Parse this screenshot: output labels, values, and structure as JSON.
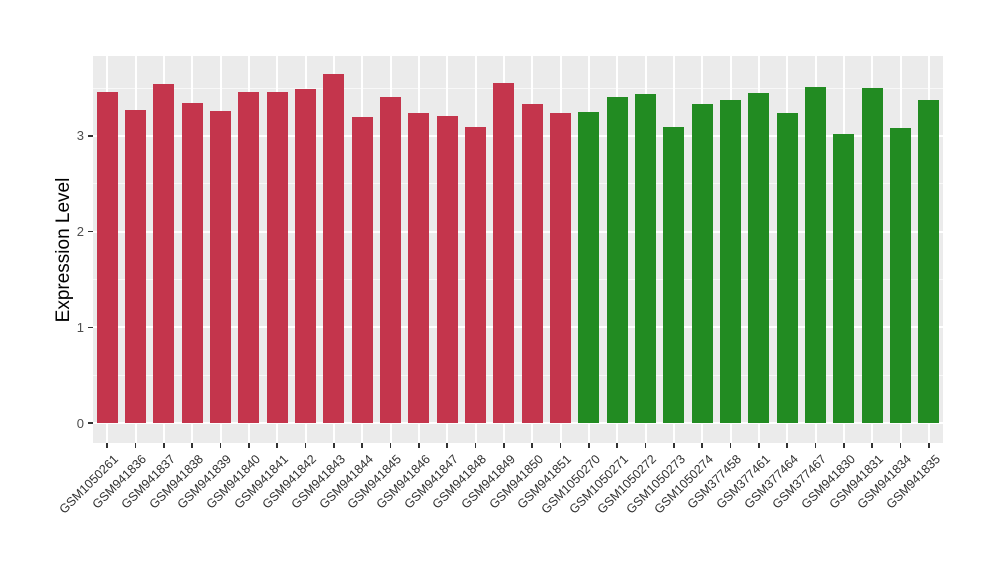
{
  "figure": {
    "background": "#FFFFFF",
    "panel_background": "#EBEBEB",
    "gridline_color": "#FFFFFF"
  },
  "chart_data": {
    "type": "bar",
    "title": "",
    "xlabel": "",
    "ylabel": "Expression Level",
    "ylim": [
      0,
      3.9
    ],
    "yticks": [
      0,
      1,
      2,
      3
    ],
    "grid_minor": [
      0.5,
      1.5,
      2.5,
      3.5
    ],
    "grid": "on",
    "legend_position": "none",
    "x_label_rotation_deg": 45,
    "group_colors": {
      "group1": "#C4354C",
      "group2": "#228B22"
    },
    "bars": [
      {
        "label": "GSM1050261",
        "value": 3.46,
        "group": "group1"
      },
      {
        "label": "GSM941836",
        "value": 3.27,
        "group": "group1"
      },
      {
        "label": "GSM941837",
        "value": 3.54,
        "group": "group1"
      },
      {
        "label": "GSM941838",
        "value": 3.34,
        "group": "group1"
      },
      {
        "label": "GSM941839",
        "value": 3.26,
        "group": "group1"
      },
      {
        "label": "GSM941840",
        "value": 3.46,
        "group": "group1"
      },
      {
        "label": "GSM941841",
        "value": 3.46,
        "group": "group1"
      },
      {
        "label": "GSM941842",
        "value": 3.49,
        "group": "group1"
      },
      {
        "label": "GSM941843",
        "value": 3.65,
        "group": "group1"
      },
      {
        "label": "GSM941844",
        "value": 3.2,
        "group": "group1"
      },
      {
        "label": "GSM941845",
        "value": 3.41,
        "group": "group1"
      },
      {
        "label": "GSM941846",
        "value": 3.24,
        "group": "group1"
      },
      {
        "label": "GSM941847",
        "value": 3.21,
        "group": "group1"
      },
      {
        "label": "GSM941848",
        "value": 3.09,
        "group": "group1"
      },
      {
        "label": "GSM941849",
        "value": 3.55,
        "group": "group1"
      },
      {
        "label": "GSM941850",
        "value": 3.33,
        "group": "group1"
      },
      {
        "label": "GSM941851",
        "value": 3.24,
        "group": "group1"
      },
      {
        "label": "GSM1050270",
        "value": 3.25,
        "group": "group2"
      },
      {
        "label": "GSM1050271",
        "value": 3.41,
        "group": "group2"
      },
      {
        "label": "GSM1050272",
        "value": 3.44,
        "group": "group2"
      },
      {
        "label": "GSM1050273",
        "value": 3.09,
        "group": "group2"
      },
      {
        "label": "GSM1050274",
        "value": 3.33,
        "group": "group2"
      },
      {
        "label": "GSM377458",
        "value": 3.38,
        "group": "group2"
      },
      {
        "label": "GSM377461",
        "value": 3.45,
        "group": "group2"
      },
      {
        "label": "GSM377464",
        "value": 3.24,
        "group": "group2"
      },
      {
        "label": "GSM377467",
        "value": 3.51,
        "group": "group2"
      },
      {
        "label": "GSM941830",
        "value": 3.02,
        "group": "group2"
      },
      {
        "label": "GSM941831",
        "value": 3.5,
        "group": "group2"
      },
      {
        "label": "GSM941834",
        "value": 3.08,
        "group": "group2"
      },
      {
        "label": "GSM941835",
        "value": 3.38,
        "group": "group2"
      }
    ]
  }
}
